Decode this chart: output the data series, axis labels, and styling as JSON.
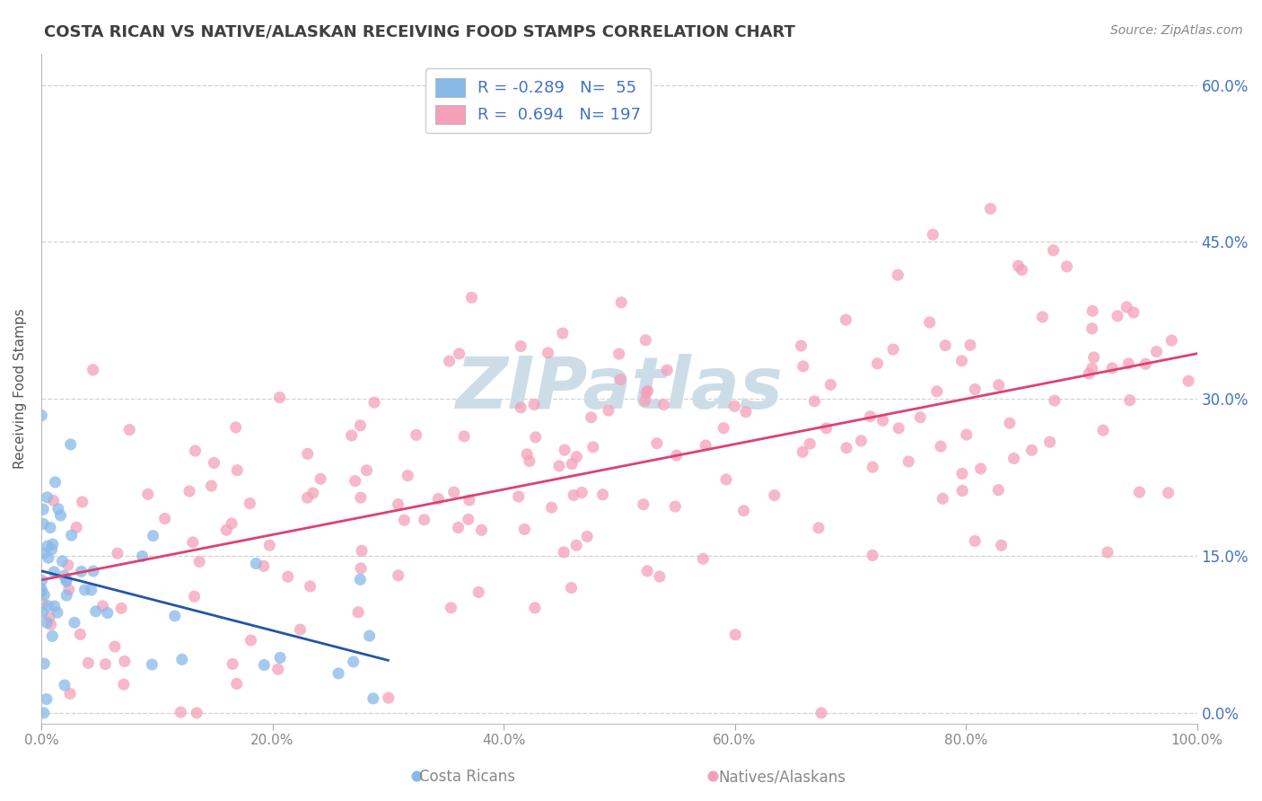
{
  "title": "COSTA RICAN VS NATIVE/ALASKAN RECEIVING FOOD STAMPS CORRELATION CHART",
  "source": "Source: ZipAtlas.com",
  "ylabel": "Receiving Food Stamps",
  "xlim": [
    0.0,
    100.0
  ],
  "ylim": [
    -1.0,
    63.0
  ],
  "yticks": [
    0,
    15,
    30,
    45,
    60
  ],
  "xticks": [
    0,
    20,
    40,
    60,
    80,
    100
  ],
  "background_color": "#ffffff",
  "grid_color": "#c8c8c8",
  "title_color": "#404040",
  "title_fontsize": 13,
  "source_color": "#888888",
  "axis_label_color": "#555555",
  "legend_text_color": "#4472c4",
  "blue_color": "#89b9e8",
  "pink_color": "#f5a0b8",
  "blue_line_color": "#2255aa",
  "pink_line_color": "#e04070",
  "watermark_color": "#ccdde8",
  "R_blue": -0.289,
  "N_blue": 55,
  "R_pink": 0.694,
  "N_pink": 197,
  "blue_seed": 12,
  "pink_seed": 7
}
